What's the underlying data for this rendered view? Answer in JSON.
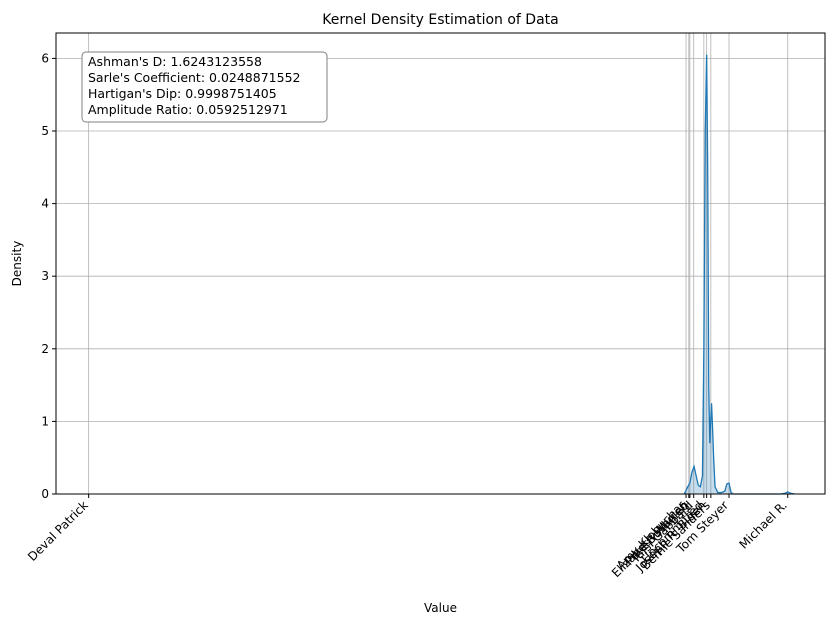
{
  "chart_data": {
    "type": "area",
    "title": "Kernel Density Estimation of Data",
    "xlabel": "Value",
    "ylabel": "Density",
    "ylim": [
      0,
      6.35
    ],
    "y_ticks": [
      0,
      1,
      2,
      3,
      4,
      5,
      6
    ],
    "x_categories": [
      {
        "label": "Deval Patrick",
        "x": 0
      },
      {
        "label": "Amy Klobuchar",
        "x": 0.8545
      },
      {
        "label": "Elizabeth Warren",
        "x": 0.8585
      },
      {
        "label": "Pete Buttigieg",
        "x": 0.86
      },
      {
        "label": "Tulsi Gabbard",
        "x": 0.8655
      },
      {
        "label": "Uncommitted",
        "x": 0.88
      },
      {
        "label": "Joseph R. Biden",
        "x": 0.884
      },
      {
        "label": "Bernie Sanders",
        "x": 0.89
      },
      {
        "label": "Tom Steyer",
        "x": 0.916
      },
      {
        "label": "Michael R.",
        "x": 1.0
      }
    ],
    "density_curve": {
      "x": [
        0.852,
        0.8545,
        0.857,
        0.86,
        0.863,
        0.866,
        0.869,
        0.872,
        0.875,
        0.878,
        0.88,
        0.882,
        0.884,
        0.8855,
        0.887,
        0.8885,
        0.8895,
        0.891,
        0.8925,
        0.894,
        0.896,
        0.9,
        0.905,
        0.91,
        0.913,
        0.916,
        0.919,
        0.922,
        0.94,
        0.97,
        0.99,
        0.996,
        1.0,
        1.004,
        1.01
      ],
      "y": [
        0,
        0.05,
        0.1,
        0.15,
        0.3,
        0.38,
        0.25,
        0.12,
        0.1,
        0.25,
        2.0,
        5.0,
        6.05,
        4.5,
        1.5,
        0.7,
        0.95,
        1.25,
        0.9,
        0.5,
        0.1,
        0.02,
        0.02,
        0.04,
        0.14,
        0.15,
        0.02,
        0,
        0,
        0,
        0,
        0.01,
        0.03,
        0.01,
        0
      ]
    },
    "annotation": [
      "Ashman's D: 1.6243123558",
      "Sarle's Coefficient: 0.0248871552",
      "Hartigan's Dip: 0.9998751405",
      "Amplitude Ratio: 0.0592512971"
    ],
    "grid": true,
    "colors": {
      "series": "#1f77b4",
      "grid": "#b0b0b0"
    }
  }
}
